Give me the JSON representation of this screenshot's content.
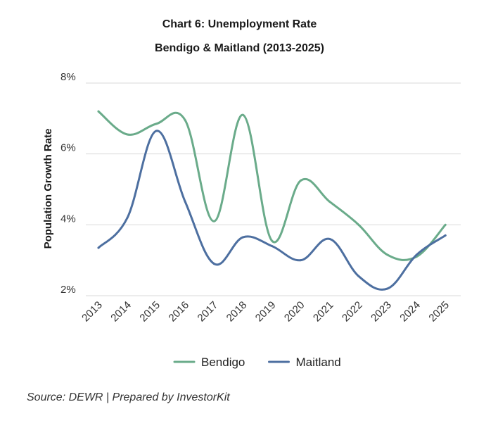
{
  "chart_data": {
    "type": "line",
    "title": "Chart 6: Unemployment Rate",
    "subtitle": "Bendigo & Maitland (2013-2025)",
    "xlabel": "",
    "ylabel": "Population Growth Rate",
    "categories": [
      "2013",
      "2014",
      "2015",
      "2016",
      "2017",
      "2018",
      "2019",
      "2020",
      "2021",
      "2022",
      "2023",
      "2024",
      "2025"
    ],
    "y_ticks": [
      "2%",
      "4%",
      "6%",
      "8%"
    ],
    "ylim": [
      2,
      8
    ],
    "grid": true,
    "legend_position": "bottom",
    "series": [
      {
        "name": "Bendigo",
        "color": "#6aab8a",
        "values": [
          7.2,
          6.55,
          6.85,
          6.95,
          4.1,
          7.1,
          3.55,
          5.25,
          4.65,
          4.0,
          3.15,
          3.1,
          4.0
        ]
      },
      {
        "name": "Maitland",
        "color": "#4d6fa0",
        "values": [
          3.35,
          4.2,
          6.65,
          4.65,
          2.9,
          3.65,
          3.4,
          3.0,
          3.6,
          2.55,
          2.2,
          3.15,
          3.7
        ]
      }
    ]
  },
  "footer": {
    "source": "Source: DEWR | Prepared by InvestorKit"
  }
}
